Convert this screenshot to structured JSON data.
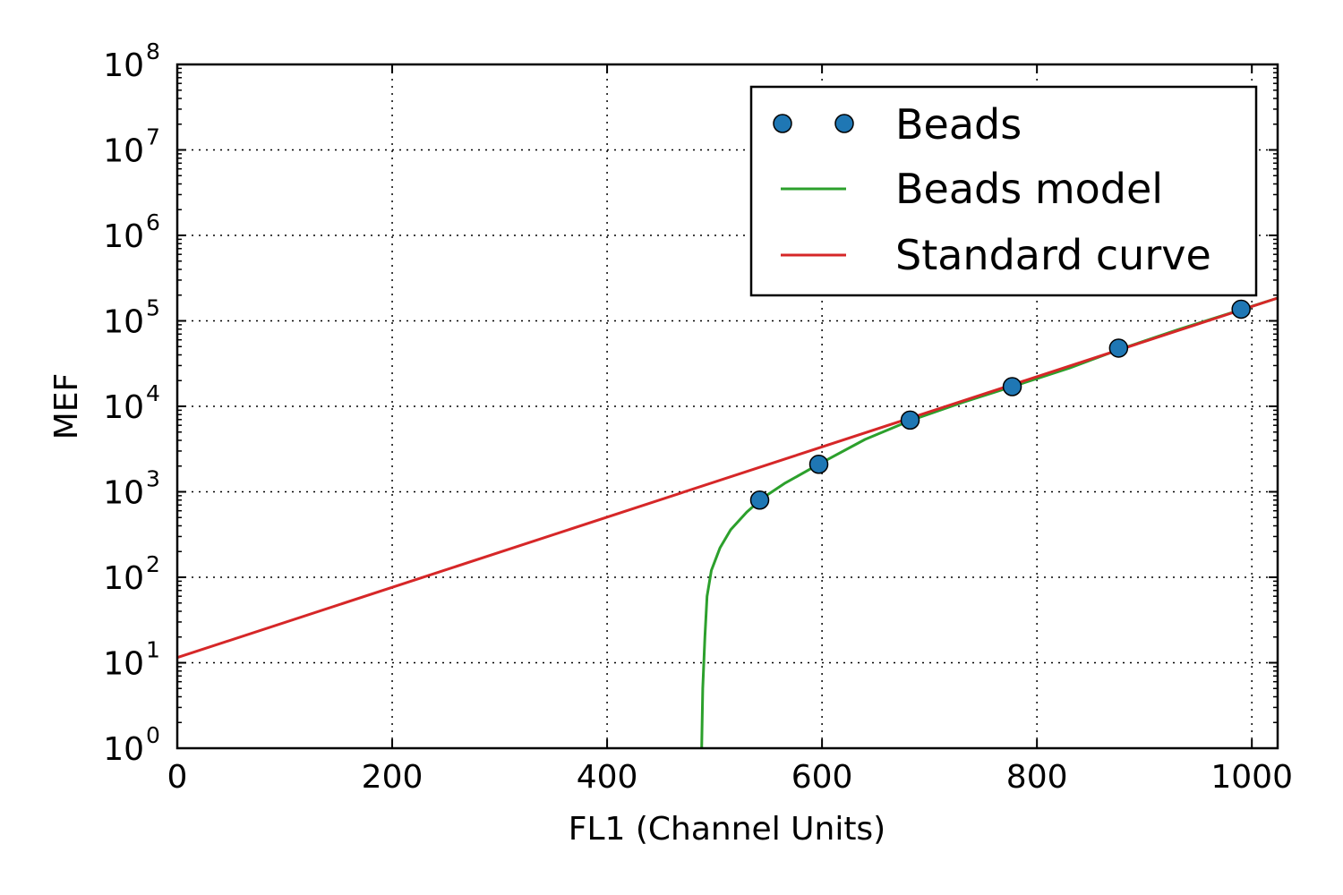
{
  "chart_data": {
    "type": "line",
    "xlabel": "FL1 (Channel Units)",
    "ylabel": "MEF",
    "xlim": [
      0,
      1024
    ],
    "ylim": [
      1,
      100000000
    ],
    "y_scale": "log",
    "grid": true,
    "grid_style": "dotted",
    "legend_position": "top-right",
    "x_ticks": [
      0,
      200,
      400,
      600,
      800,
      1000
    ],
    "y_ticks": [
      {
        "base": "10",
        "exp": "0",
        "value": 1
      },
      {
        "base": "10",
        "exp": "1",
        "value": 10
      },
      {
        "base": "10",
        "exp": "2",
        "value": 100
      },
      {
        "base": "10",
        "exp": "3",
        "value": 1000
      },
      {
        "base": "10",
        "exp": "4",
        "value": 10000
      },
      {
        "base": "10",
        "exp": "5",
        "value": 100000
      },
      {
        "base": "10",
        "exp": "6",
        "value": 1000000
      },
      {
        "base": "10",
        "exp": "7",
        "value": 10000000
      },
      {
        "base": "10",
        "exp": "8",
        "value": 100000000
      }
    ],
    "series": [
      {
        "name": "Beads",
        "kind": "scatter",
        "color": "#1f77b4",
        "points": [
          {
            "x": 542,
            "y": 800
          },
          {
            "x": 597,
            "y": 2100
          },
          {
            "x": 682,
            "y": 6900
          },
          {
            "x": 777,
            "y": 17000
          },
          {
            "x": 876,
            "y": 48000
          },
          {
            "x": 990,
            "y": 137000
          }
        ]
      },
      {
        "name": "Beads model",
        "kind": "line",
        "color": "#2ca02c",
        "points": [
          {
            "x": 488,
            "y": 1
          },
          {
            "x": 489,
            "y": 5
          },
          {
            "x": 491,
            "y": 20
          },
          {
            "x": 493,
            "y": 60
          },
          {
            "x": 497,
            "y": 120
          },
          {
            "x": 505,
            "y": 220
          },
          {
            "x": 515,
            "y": 360
          },
          {
            "x": 530,
            "y": 580
          },
          {
            "x": 545,
            "y": 850
          },
          {
            "x": 565,
            "y": 1250
          },
          {
            "x": 597,
            "y": 2100
          },
          {
            "x": 640,
            "y": 4100
          },
          {
            "x": 682,
            "y": 6800
          },
          {
            "x": 730,
            "y": 11000
          },
          {
            "x": 777,
            "y": 17000
          },
          {
            "x": 830,
            "y": 28000
          },
          {
            "x": 876,
            "y": 46000
          },
          {
            "x": 930,
            "y": 78000
          },
          {
            "x": 990,
            "y": 135000
          },
          {
            "x": 1024,
            "y": 185000
          }
        ]
      },
      {
        "name": "Standard curve",
        "kind": "line",
        "color": "#d62728",
        "points": [
          {
            "x": 0,
            "y": 11.5
          },
          {
            "x": 1024,
            "y": 185000
          }
        ]
      }
    ]
  }
}
